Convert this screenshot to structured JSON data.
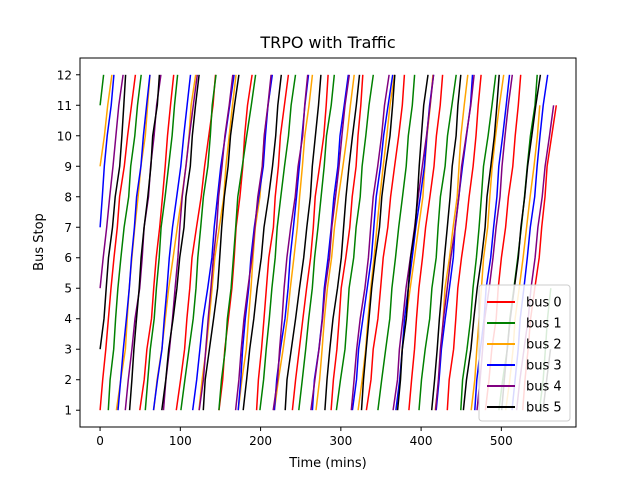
{
  "chart_data": {
    "type": "line",
    "title": "TRPO with Traffic",
    "xlabel": "Time (mins)",
    "ylabel": "Bus Stop",
    "xlim": [
      -25,
      593
    ],
    "ylim": [
      0.45,
      12.55
    ],
    "xticks": [
      0,
      100,
      200,
      300,
      400,
      500
    ],
    "yticks": [
      1,
      2,
      3,
      4,
      5,
      6,
      7,
      8,
      9,
      10,
      11,
      12
    ],
    "grid": false,
    "legend_position": "lower-right",
    "series": [
      {
        "name": "bus 0",
        "color": "#ff0000",
        "start_stop": 1,
        "start_time": 0,
        "end_time": 565,
        "end_stop": 8
      },
      {
        "name": "bus 1",
        "color": "#008000",
        "start_stop": 11,
        "start_time": 0,
        "end_time": 560,
        "end_stop": 5
      },
      {
        "name": "bus 2",
        "color": "#ffa500",
        "start_stop": 9,
        "start_time": 0,
        "end_time": 545,
        "end_stop": 12
      },
      {
        "name": "bus 3",
        "color": "#0000ff",
        "start_stop": 7,
        "start_time": 0,
        "end_time": 555,
        "end_stop": 10
      },
      {
        "name": "bus 4",
        "color": "#800080",
        "start_stop": 5,
        "start_time": 0,
        "end_time": 563,
        "end_stop": 11
      },
      {
        "name": "bus 5",
        "color": "#000000",
        "start_stop": 3,
        "start_time": 0,
        "end_time": 560,
        "end_stop": 9
      }
    ],
    "route": {
      "num_stops": 12,
      "mean_minutes_per_stop": 4.05,
      "speed_variation": 0.9
    }
  }
}
